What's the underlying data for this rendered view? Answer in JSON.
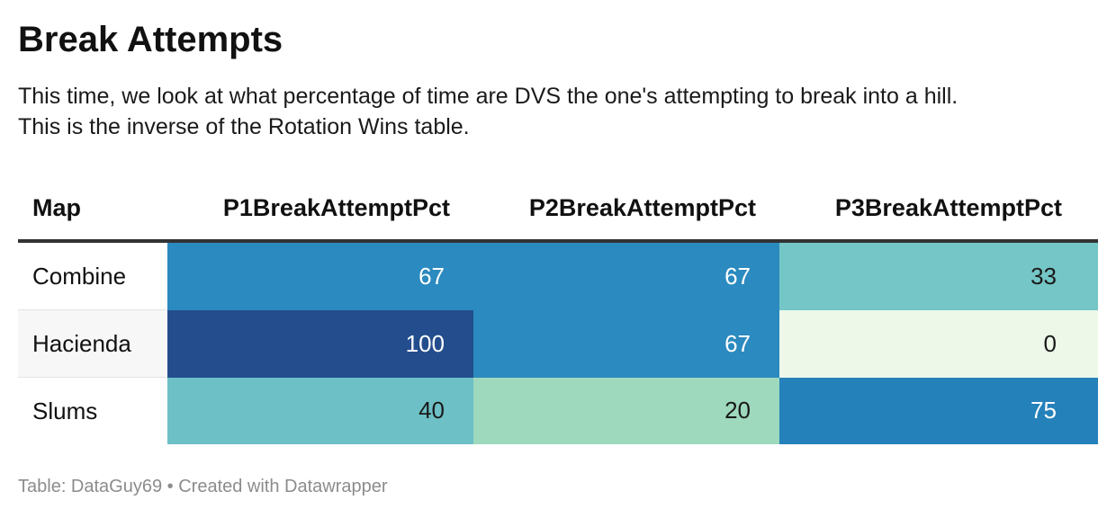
{
  "title": "Break Attempts",
  "description_lines": [
    "This time, we look at what percentage of time are DVS the one's attempting to break into a hill.",
    "This is the inverse of the Rotation Wins table."
  ],
  "footer": "Table: DataGuy69 • Created with Datawrapper",
  "colors": {
    "scale": [
      "#edf8e9",
      "#a8dcbb",
      "#74c6c6",
      "#63b8c5",
      "#2b8abf",
      "#1f78b4",
      "#234d8d"
    ]
  },
  "chart_data": {
    "type": "table",
    "title": "Break Attempts",
    "columns": [
      "Map",
      "P1BreakAttemptPct",
      "P2BreakAttemptPct",
      "P3BreakAttemptPct"
    ],
    "rows": [
      {
        "map": "Combine",
        "values": [
          67,
          67,
          33
        ]
      },
      {
        "map": "Hacienda",
        "values": [
          100,
          67,
          0
        ]
      },
      {
        "map": "Slums",
        "values": [
          40,
          20,
          75
        ]
      }
    ],
    "heatmap_range": [
      0,
      100
    ]
  }
}
